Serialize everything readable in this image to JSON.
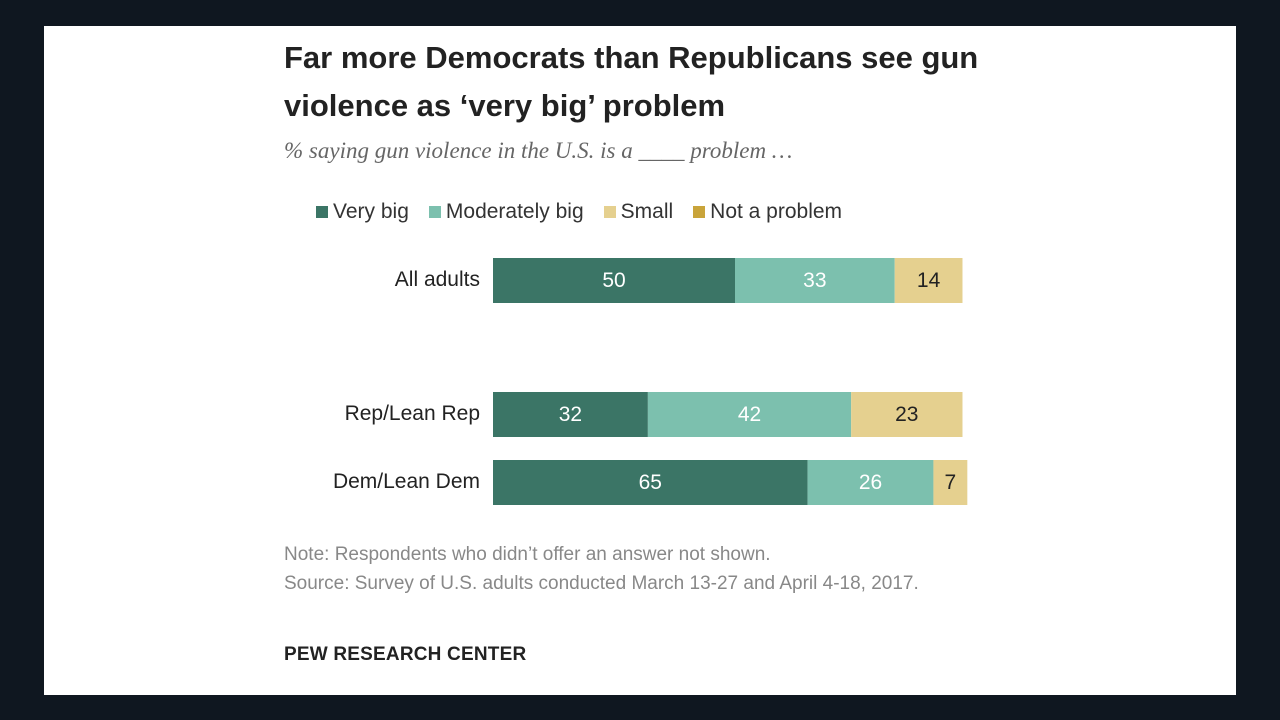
{
  "chart_data": {
    "type": "bar",
    "orientation": "horizontal",
    "stacked": true,
    "title": "Far more Democrats than Republicans see gun violence as ‘very big’ problem",
    "subtitle": "% saying gun violence in the U.S. is a ____ problem …",
    "categories": [
      "All adults",
      "Rep/Lean Rep",
      "Dem/Lean Dem"
    ],
    "series": [
      {
        "name": "Very big",
        "color": "#3b7566",
        "values": [
          50,
          32,
          65
        ]
      },
      {
        "name": "Moderately big",
        "color": "#7cc0ae",
        "values": [
          33,
          42,
          26
        ]
      },
      {
        "name": "Small",
        "color": "#e5d08f",
        "values": [
          14,
          23,
          7
        ]
      },
      {
        "name": "Not a problem",
        "color": "#c9a43a",
        "values": [
          null,
          null,
          null
        ]
      }
    ],
    "xlim": [
      0,
      100
    ],
    "grid": false,
    "legend_position": "top",
    "xlabel": "",
    "ylabel": ""
  },
  "note": "Note: Respondents who didn’t offer an answer not shown.",
  "source": "Source: Survey of U.S. adults conducted March 13-27 and April 4-18, 2017.",
  "brand": "PEW RESEARCH CENTER"
}
